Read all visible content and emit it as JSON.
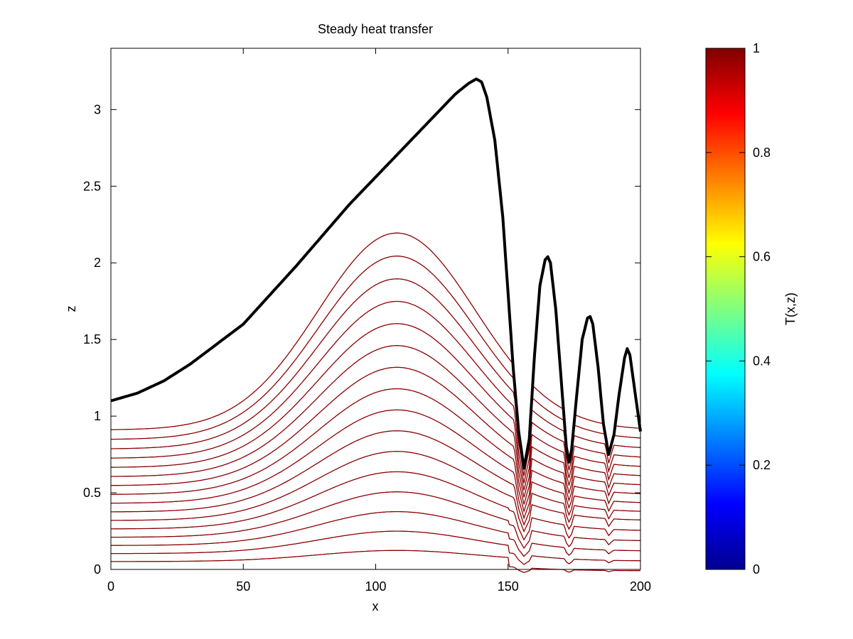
{
  "chart_data": {
    "type": "line",
    "title": "Steady heat transfer",
    "xlabel": "x",
    "ylabel": "z",
    "xlim": [
      0,
      200
    ],
    "ylim": [
      0,
      3.4
    ],
    "x_ticks": [
      "0",
      "50",
      "100",
      "150",
      "200"
    ],
    "y_ticks": [
      "0",
      "0.5",
      "1",
      "1.5",
      "2",
      "2.5",
      "3"
    ],
    "grid": false,
    "legend": "none",
    "surface_series": {
      "color": "#000000",
      "x": [
        0,
        10,
        20,
        30,
        40,
        50,
        60,
        70,
        80,
        90,
        100,
        110,
        120,
        130,
        135,
        138,
        140,
        142,
        145,
        148,
        150,
        152,
        154,
        156,
        158,
        160,
        162,
        164,
        165,
        166,
        168,
        170,
        172,
        173,
        174,
        176,
        178,
        180,
        181,
        182,
        184,
        186,
        188,
        190,
        192,
        194,
        195,
        196,
        198,
        200
      ],
      "y": [
        1.1,
        1.15,
        1.23,
        1.34,
        1.47,
        1.6,
        1.79,
        1.98,
        2.18,
        2.38,
        2.56,
        2.74,
        2.92,
        3.1,
        3.17,
        3.2,
        3.18,
        3.08,
        2.8,
        2.3,
        1.8,
        1.3,
        0.9,
        0.66,
        0.85,
        1.4,
        1.85,
        2.02,
        2.04,
        2.0,
        1.7,
        1.25,
        0.8,
        0.7,
        0.78,
        1.15,
        1.5,
        1.64,
        1.65,
        1.6,
        1.32,
        0.95,
        0.75,
        0.88,
        1.15,
        1.38,
        1.44,
        1.4,
        1.15,
        0.9
      ]
    },
    "contour_color": "#8b0000",
    "contour_levels": [
      0.06,
      0.12,
      0.18,
      0.24,
      0.3,
      0.36,
      0.42,
      0.48,
      0.54,
      0.6,
      0.66,
      0.72,
      0.78,
      0.84,
      0.9,
      0.96
    ],
    "colorbar": {
      "label": "T(x,z)",
      "range": [
        0,
        1
      ],
      "ticks": [
        "0",
        "0.2",
        "0.4",
        "0.6",
        "0.8",
        "1"
      ],
      "colormap": "jet"
    }
  }
}
